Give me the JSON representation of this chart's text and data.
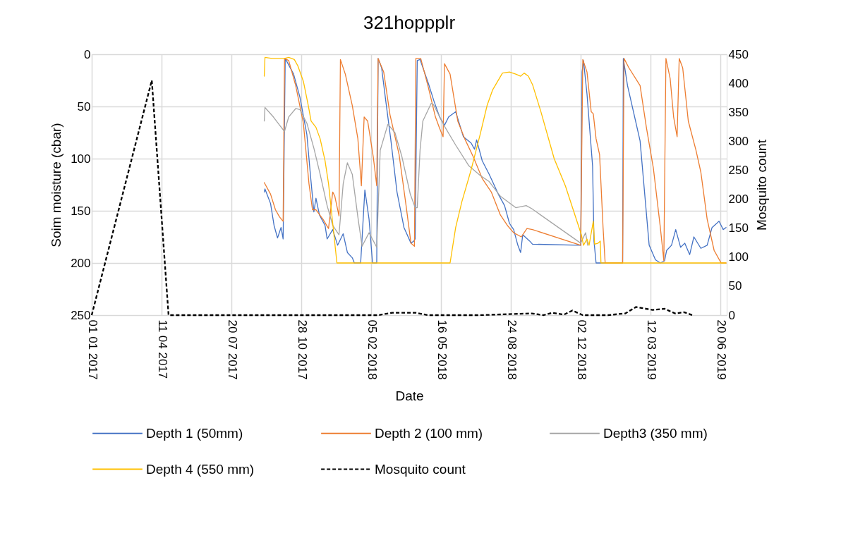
{
  "chart_data": {
    "type": "line",
    "title": "321hoppplr",
    "xlabel": "Date",
    "ylabel": "Soim moisture (cbar)",
    "y2label": "Mosquito count",
    "xlim": [
      "2017-01-01",
      "2019-06-29"
    ],
    "xticks": [
      {
        "value": "2017-01-01",
        "label": "01 01 2017"
      },
      {
        "value": "2017-04-11",
        "label": "11 04 2017"
      },
      {
        "value": "2017-07-20",
        "label": "20 07 2017"
      },
      {
        "value": "2017-10-28",
        "label": "28 10 2017"
      },
      {
        "value": "2018-02-05",
        "label": "05 02 2018"
      },
      {
        "value": "2018-05-16",
        "label": "16 05 2018"
      },
      {
        "value": "2018-08-24",
        "label": "24 08 2018"
      },
      {
        "value": "2018-12-02",
        "label": "02 12 2018"
      },
      {
        "value": "2019-03-12",
        "label": "12 03 2019"
      },
      {
        "value": "2019-06-20",
        "label": "20 06 2019"
      }
    ],
    "ylim": [
      250,
      0
    ],
    "yticks": [
      0,
      50,
      100,
      150,
      200,
      250
    ],
    "y2lim": [
      0,
      450
    ],
    "y2ticks": [
      0,
      50,
      100,
      150,
      200,
      250,
      300,
      350,
      400,
      450
    ],
    "grid": true,
    "legend": "bottom",
    "series": [
      {
        "name": "Depth 1 (50mm)",
        "color": "#4472c4",
        "x": [
          "2017-09-05",
          "2017-09-06",
          "2017-09-14",
          "2017-09-19",
          "2017-09-24",
          "2017-09-29",
          "2017-10-02",
          "2017-10-05",
          "2017-10-17",
          "2017-10-26",
          "2017-11-05",
          "2017-11-10",
          "2017-11-15",
          "2017-11-18",
          "2017-11-23",
          "2017-12-01",
          "2017-12-04",
          "2017-12-12",
          "2017-12-19",
          "2017-12-27",
          "2018-01-02",
          "2018-01-09",
          "2018-01-12",
          "2018-01-21",
          "2018-01-27",
          "2018-02-02",
          "2018-02-07",
          "2018-02-13",
          "2018-02-15",
          "2018-02-20",
          "2018-02-26",
          "2018-03-05",
          "2018-03-14",
          "2018-03-24",
          "2018-04-03",
          "2018-04-07",
          "2018-04-09",
          "2018-04-12",
          "2018-04-16",
          "2018-04-28",
          "2018-05-06",
          "2018-05-14",
          "2018-05-21",
          "2018-05-27",
          "2018-06-06",
          "2018-06-17",
          "2018-06-28",
          "2018-07-03",
          "2018-07-06",
          "2018-07-14",
          "2018-07-24",
          "2018-08-06",
          "2018-08-15",
          "2018-08-22",
          "2018-08-28",
          "2018-09-03",
          "2018-09-07",
          "2018-09-10",
          "2018-09-20",
          "2018-09-24",
          "2018-12-02",
          "2018-12-04",
          "2018-12-06",
          "2018-12-11",
          "2018-12-19",
          "2018-12-21",
          "2018-12-24",
          "2019-01-31",
          "2019-02-01",
          "2019-02-07",
          "2019-02-25",
          "2019-03-10",
          "2019-03-19",
          "2019-03-26",
          "2019-04-01",
          "2019-04-04",
          "2019-04-11",
          "2019-04-17",
          "2019-04-24",
          "2019-04-30",
          "2019-05-07",
          "2019-05-13",
          "2019-05-23",
          "2019-06-01",
          "2019-06-08",
          "2019-06-18",
          "2019-06-24",
          "2019-06-28"
        ],
        "values": [
          132,
          129,
          143,
          164,
          176,
          166,
          177,
          4,
          19,
          41,
          77,
          115,
          151,
          138,
          154,
          164,
          177,
          168,
          183,
          172,
          190,
          195,
          200,
          200,
          130,
          158,
          200,
          200,
          4,
          13,
          45,
          81,
          132,
          166,
          181,
          179,
          177,
          6,
          5,
          28,
          45,
          60,
          68,
          60,
          55,
          79,
          85,
          91,
          82,
          102,
          115,
          134,
          145,
          162,
          168,
          183,
          190,
          173,
          179,
          182,
          183,
          17,
          6,
          38,
          107,
          179,
          200,
          200,
          4,
          30,
          83,
          183,
          197,
          200,
          198,
          188,
          183,
          168,
          185,
          181,
          192,
          175,
          186,
          183,
          166,
          160,
          168,
          166
        ]
      },
      {
        "name": "Depth 2 (100 mm)",
        "color": "#ed7d31",
        "x": [
          "2017-09-05",
          "2017-09-14",
          "2017-09-21",
          "2017-09-27",
          "2017-10-02",
          "2017-10-04",
          "2017-10-10",
          "2017-10-20",
          "2017-10-31",
          "2017-11-08",
          "2017-11-13",
          "2017-11-18",
          "2017-11-28",
          "2017-12-06",
          "2017-12-12",
          "2017-12-15",
          "2017-12-21",
          "2017-12-23",
          "2017-12-30",
          "2018-01-09",
          "2018-01-17",
          "2018-01-22",
          "2018-01-26",
          "2018-01-31",
          "2018-02-08",
          "2018-02-13",
          "2018-02-15",
          "2018-02-23",
          "2018-03-04",
          "2018-03-17",
          "2018-03-27",
          "2018-04-03",
          "2018-04-08",
          "2018-04-10",
          "2018-04-17",
          "2018-04-28",
          "2018-05-08",
          "2018-05-14",
          "2018-05-19",
          "2018-05-21",
          "2018-05-29",
          "2018-06-09",
          "2018-06-19",
          "2018-07-01",
          "2018-07-14",
          "2018-07-27",
          "2018-08-09",
          "2018-08-19",
          "2018-08-28",
          "2018-09-08",
          "2018-09-16",
          "2018-09-24",
          "2018-12-02",
          "2018-12-05",
          "2018-12-11",
          "2018-12-17",
          "2018-12-20",
          "2018-12-24",
          "2018-12-29",
          "2019-01-03",
          "2019-01-06",
          "2019-01-31",
          "2019-02-02",
          "2019-02-09",
          "2019-02-25",
          "2019-03-06",
          "2019-03-16",
          "2019-03-26",
          "2019-03-31",
          "2019-04-03",
          "2019-04-09",
          "2019-04-14",
          "2019-04-19",
          "2019-04-22",
          "2019-04-27",
          "2019-05-05",
          "2019-05-16",
          "2019-05-23",
          "2019-06-01",
          "2019-06-11",
          "2019-06-21",
          "2019-06-28"
        ],
        "values": [
          123,
          134,
          149,
          156,
          160,
          4,
          6,
          30,
          66,
          124,
          149,
          149,
          158,
          167,
          132,
          136,
          155,
          5,
          19,
          49,
          81,
          126,
          60,
          64,
          98,
          126,
          4,
          17,
          58,
          96,
          145,
          181,
          184,
          4,
          4,
          32,
          60,
          71,
          79,
          9,
          19,
          64,
          81,
          98,
          119,
          132,
          154,
          164,
          171,
          175,
          167,
          168,
          183,
          5,
          17,
          55,
          57,
          81,
          96,
          166,
          200,
          200,
          4,
          13,
          30,
          70,
          109,
          166,
          198,
          4,
          23,
          60,
          79,
          4,
          13,
          64,
          92,
          113,
          158,
          188,
          200,
          200
        ]
      },
      {
        "name": "Depth3 (350 mm)",
        "color": "#a5a5a5",
        "x": [
          "2017-09-05",
          "2017-09-06",
          "2017-09-18",
          "2017-09-27",
          "2017-10-04",
          "2017-10-10",
          "2017-10-20",
          "2017-10-26",
          "2017-11-05",
          "2017-11-15",
          "2017-11-24",
          "2017-12-04",
          "2017-12-12",
          "2017-12-21",
          "2017-12-27",
          "2018-01-02",
          "2018-01-09",
          "2018-01-17",
          "2018-01-23",
          "2018-02-02",
          "2018-02-13",
          "2018-02-18",
          "2018-03-01",
          "2018-03-11",
          "2018-03-21",
          "2018-04-02",
          "2018-04-09",
          "2018-04-12",
          "2018-04-16",
          "2018-04-20",
          "2018-05-02",
          "2018-05-05",
          "2018-05-21",
          "2018-06-06",
          "2018-06-25",
          "2018-07-11",
          "2018-07-24",
          "2018-08-09",
          "2018-08-31",
          "2018-09-15",
          "2018-09-23",
          "2018-12-02",
          "2018-12-09",
          "2018-12-12"
        ],
        "values": [
          64,
          51,
          60,
          68,
          74,
          60,
          52,
          53,
          66,
          90,
          115,
          145,
          164,
          173,
          124,
          104,
          115,
          156,
          184,
          171,
          185,
          92,
          67,
          75,
          98,
          134,
          147,
          147,
          92,
          64,
          47,
          48,
          69,
          87,
          107,
          116,
          122,
          136,
          147,
          145,
          148,
          181,
          171,
          183
        ]
      },
      {
        "name": "Depth 4 (550 mm)",
        "color": "#ffc000",
        "x": [
          "2017-09-05",
          "2017-09-06",
          "2017-09-16",
          "2017-10-04",
          "2017-10-10",
          "2017-10-18",
          "2017-10-23",
          "2017-10-31",
          "2017-11-07",
          "2017-11-11",
          "2017-11-18",
          "2017-11-24",
          "2017-12-01",
          "2017-12-06",
          "2017-12-12",
          "2017-12-18",
          "2018-05-29",
          "2018-06-06",
          "2018-06-15",
          "2018-06-28",
          "2018-07-11",
          "2018-07-21",
          "2018-07-29",
          "2018-08-12",
          "2018-08-22",
          "2018-08-31",
          "2018-09-07",
          "2018-09-12",
          "2018-09-18",
          "2018-09-24",
          "2018-10-06",
          "2018-10-25",
          "2018-11-10",
          "2018-12-03",
          "2018-12-06",
          "2018-12-11",
          "2018-12-14",
          "2018-12-20",
          "2018-12-22",
          "2018-12-27",
          "2018-12-30",
          "2018-12-31",
          "2019-06-28"
        ],
        "values": [
          21,
          3,
          4,
          4,
          3,
          5,
          11,
          26,
          49,
          64,
          70,
          81,
          102,
          124,
          162,
          200,
          200,
          166,
          141,
          111,
          77,
          49,
          34,
          18,
          17,
          19,
          21,
          18,
          21,
          29,
          55,
          100,
          126,
          173,
          183,
          177,
          183,
          160,
          182,
          181,
          179,
          200,
          200
        ]
      },
      {
        "name": "Mosquito count",
        "color": "#000000",
        "axis": "y2",
        "line_style": "dashed",
        "x": [
          "2017-01-01",
          "2017-03-28",
          "2017-04-21",
          "2018-02-15",
          "2018-03-07",
          "2018-04-10",
          "2018-04-27",
          "2018-07-10",
          "2018-09-23",
          "2018-10-10",
          "2018-10-22",
          "2018-11-08",
          "2018-11-20",
          "2018-12-05",
          "2019-01-10",
          "2019-02-04",
          "2019-02-19",
          "2019-03-15",
          "2019-04-01",
          "2019-04-16",
          "2019-04-29",
          "2019-05-11"
        ],
        "values": [
          0,
          405,
          0,
          0,
          4,
          4,
          0,
          0,
          3,
          0,
          4,
          1,
          8,
          0,
          0,
          3,
          14,
          9,
          11,
          3,
          5,
          0
        ]
      }
    ]
  }
}
